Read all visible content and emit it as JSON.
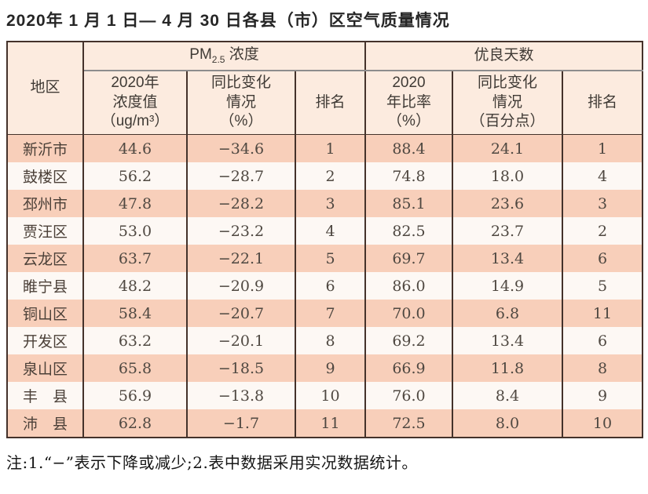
{
  "title": "2020年 1 月 1 日— 4 月 30 日各县（市）区空气质量情况",
  "footnote": "注:1.“−”表示下降或减少;2.表中数据采用实况数据统计。",
  "table": {
    "corner": "地区",
    "pm_group": {
      "main": "PM",
      "sub": "2.5",
      "rest": " 浓度"
    },
    "good_group": "优良天数",
    "subheaders": [
      "2020年\n浓度值\n（ug/m³）",
      "同比变化\n情况\n（%）",
      "排名",
      "2020\n年比率\n（%）",
      "同比变化\n情况\n（百分点）",
      "排名"
    ],
    "rows": [
      {
        "region": "新沂市",
        "cells": [
          "44.6",
          "−34.6",
          "1",
          "88.4",
          "24.1",
          "1"
        ]
      },
      {
        "region": "鼓楼区",
        "cells": [
          "56.2",
          "−28.7",
          "2",
          "74.8",
          "18.0",
          "4"
        ]
      },
      {
        "region": "邳州市",
        "cells": [
          "47.8",
          "−28.2",
          "3",
          "85.1",
          "23.6",
          "3"
        ]
      },
      {
        "region": "贾汪区",
        "cells": [
          "53.0",
          "−23.2",
          "4",
          "82.5",
          "23.7",
          "2"
        ]
      },
      {
        "region": "云龙区",
        "cells": [
          "63.7",
          "−22.1",
          "5",
          "69.7",
          "13.4",
          "6"
        ]
      },
      {
        "region": "睢宁县",
        "cells": [
          "48.2",
          "−20.9",
          "6",
          "86.0",
          "14.9",
          "5"
        ]
      },
      {
        "region": "铜山区",
        "cells": [
          "58.4",
          "−20.7",
          "7",
          "70.0",
          "6.8",
          "11"
        ]
      },
      {
        "region": "开发区",
        "cells": [
          "63.2",
          "−20.1",
          "8",
          "69.2",
          "13.4",
          "6"
        ]
      },
      {
        "region": "泉山区",
        "cells": [
          "65.8",
          "−18.5",
          "9",
          "66.9",
          "11.8",
          "8"
        ]
      },
      {
        "region": "丰　县",
        "cells": [
          "56.9",
          "−13.8",
          "10",
          "76.0",
          "8.4",
          "9"
        ]
      },
      {
        "region": "沛　县",
        "cells": [
          "62.8",
          "−1.7",
          "11",
          "72.5",
          "8.0",
          "10"
        ]
      }
    ]
  },
  "colors": {
    "row_highlight": "#f8cfba",
    "row_alt": "#fdf8f4",
    "header_bg": "#fcebdf",
    "border": "#44322b"
  }
}
